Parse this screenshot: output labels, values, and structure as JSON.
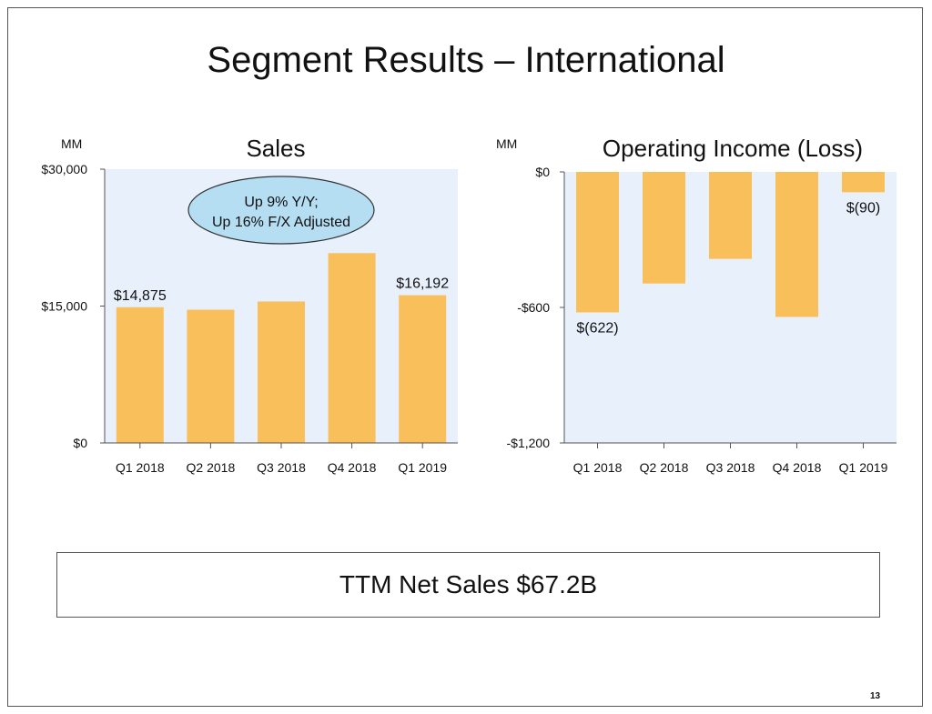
{
  "slide": {
    "title": "Segment Results – International",
    "summary": "TTM Net Sales $67.2B",
    "page_number": "13"
  },
  "colors": {
    "bar": "#F9BF5B",
    "plot_bg": "#E8F0FC",
    "callout_fill": "#B5DEF3"
  },
  "chart_data": [
    {
      "type": "bar",
      "title": "Sales",
      "unit_label": "MM",
      "categories": [
        "Q1 2018",
        "Q2 2018",
        "Q3 2018",
        "Q4 2018",
        "Q1 2019"
      ],
      "values": [
        14875,
        14600,
        15500,
        20800,
        16192
      ],
      "data_labels": [
        "$14,875",
        "",
        "",
        "",
        "$16,192"
      ],
      "ylim": [
        0,
        30000
      ],
      "yticks": [
        0,
        15000,
        30000
      ],
      "ytick_labels": [
        "$0",
        "$15,000",
        "$30,000"
      ],
      "annotation": [
        "Up 9% Y/Y;",
        "Up 16% F/X Adjusted"
      ],
      "grid": false
    },
    {
      "type": "bar",
      "title": "Operating Income (Loss)",
      "unit_label": "MM",
      "categories": [
        "Q1 2018",
        "Q2 2018",
        "Q3 2018",
        "Q4 2018",
        "Q1 2019"
      ],
      "values": [
        -622,
        -494,
        -385,
        -642,
        -90
      ],
      "data_labels": [
        "$(622)",
        "",
        "",
        "",
        "$(90)"
      ],
      "ylim": [
        -1200,
        0
      ],
      "yticks": [
        0,
        -600,
        -1200
      ],
      "ytick_labels": [
        "$0",
        "-$600",
        "-$1,200"
      ],
      "grid": false
    }
  ]
}
